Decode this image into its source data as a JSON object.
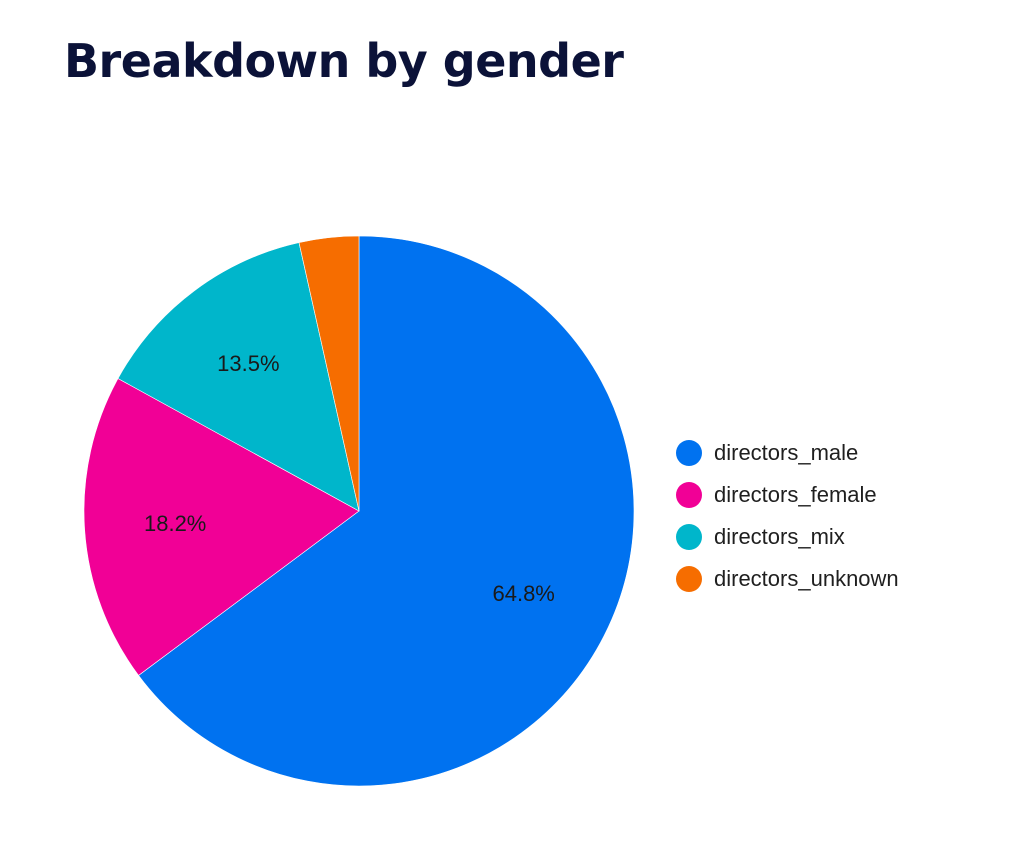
{
  "chart_data": {
    "type": "pie",
    "title": "Breakdown by gender",
    "categories": [
      "directors_male",
      "directors_female",
      "directors_mix",
      "directors_unknown"
    ],
    "values": [
      64.8,
      18.2,
      13.5,
      3.5
    ],
    "value_labels": [
      "64.8%",
      "18.2%",
      "13.5%",
      ""
    ],
    "colors": [
      "#0072f0",
      "#f10096",
      "#00b6cb",
      "#f66d00"
    ],
    "start_angle": "12 o'clock",
    "direction": "clockwise",
    "legend_position": "right"
  }
}
